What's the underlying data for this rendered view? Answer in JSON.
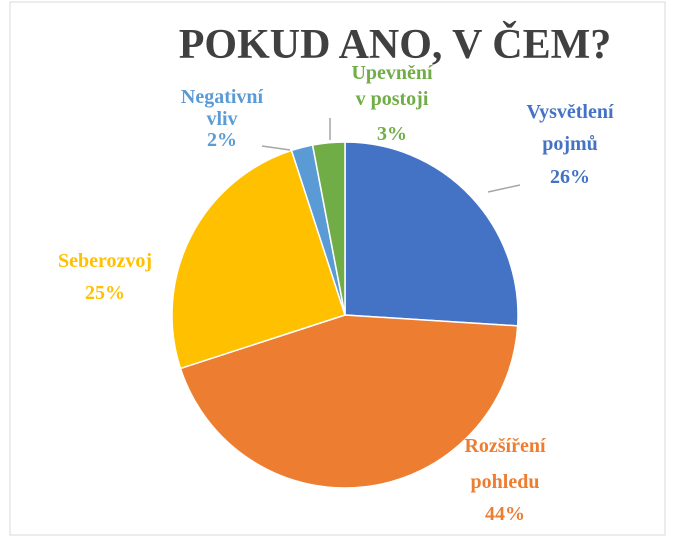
{
  "chart_data": {
    "type": "pie",
    "title": "POKUD ANO, V ČEM?",
    "categories": [
      "Vysvětlení pojmů",
      "Rozšíření pohledu",
      "Seberozvoj",
      "Negativní vliv",
      "Upevnění v postoji"
    ],
    "values": [
      26,
      44,
      25,
      2,
      3
    ],
    "value_labels": [
      "26%",
      "44%",
      "25%",
      "2%",
      "3%"
    ],
    "colors": [
      "#4472c4",
      "#ed7d31",
      "#ffc000",
      "#5b9bd5",
      "#70ad47"
    ]
  }
}
